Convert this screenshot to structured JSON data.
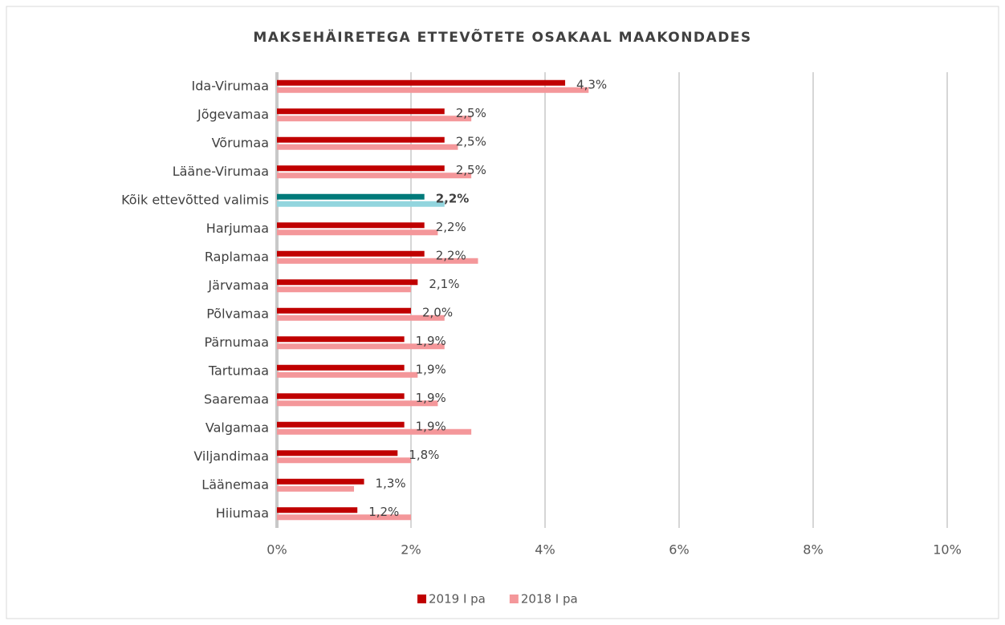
{
  "chart_data": {
    "type": "hbar",
    "title": "MAKSEHÄIRETEGA ETTEVÕTETE OSAKAAL MAAKONDADES",
    "categories": [
      "Ida-Virumaa",
      "Jõgevamaa",
      "Võrumaa",
      "Lääne-Virumaa",
      "Kõik ettevõtted valimis",
      "Harjumaa",
      "Raplamaa",
      "Järvamaa",
      "Põlvamaa",
      "Pärnumaa",
      "Tartumaa",
      "Saaremaa",
      "Valgamaa",
      "Viljandimaa",
      "Läänemaa",
      "Hiiumaa"
    ],
    "series": [
      {
        "name": "2019 I pa",
        "color": "#c00000",
        "colors": [
          "#c00000",
          "#c00000",
          "#c00000",
          "#c00000",
          "#007a7a",
          "#c00000",
          "#c00000",
          "#c00000",
          "#c00000",
          "#c00000",
          "#c00000",
          "#c00000",
          "#c00000",
          "#c00000",
          "#c00000",
          "#c00000"
        ],
        "values": [
          4.3,
          2.5,
          2.5,
          2.5,
          2.2,
          2.2,
          2.2,
          2.1,
          2.0,
          1.9,
          1.9,
          1.9,
          1.9,
          1.8,
          1.3,
          1.2
        ],
        "value_labels": [
          "4,3%",
          "2,5%",
          "2,5%",
          "2,5%",
          "2,2%",
          "2,2%",
          "2,2%",
          "2,1%",
          "2,0%",
          "1,9%",
          "1,9%",
          "1,9%",
          "1,9%",
          "1,8%",
          "1,3%",
          "1,2%"
        ]
      },
      {
        "name": "2018 I pa",
        "color": "#f4979a",
        "colors": [
          "#f4979a",
          "#f4979a",
          "#f4979a",
          "#f4979a",
          "#92d5de",
          "#f4979a",
          "#f4979a",
          "#f4979a",
          "#f4979a",
          "#f4979a",
          "#f4979a",
          "#f4979a",
          "#f4979a",
          "#f4979a",
          "#f4979a",
          "#f4979a"
        ],
        "values": [
          4.65,
          2.9,
          2.7,
          2.9,
          2.5,
          2.4,
          3.0,
          2.0,
          2.5,
          2.5,
          2.1,
          2.4,
          2.9,
          2.0,
          1.15,
          2.0
        ]
      }
    ],
    "xlim": [
      0,
      10
    ],
    "xticks": [
      {
        "value": 0,
        "label": "0%"
      },
      {
        "value": 2,
        "label": "2%"
      },
      {
        "value": 4,
        "label": "4%"
      },
      {
        "value": 6,
        "label": "6%"
      },
      {
        "value": 8,
        "label": "8%"
      },
      {
        "value": 10,
        "label": "10%"
      }
    ],
    "grid": true,
    "legend": "bottom"
  }
}
